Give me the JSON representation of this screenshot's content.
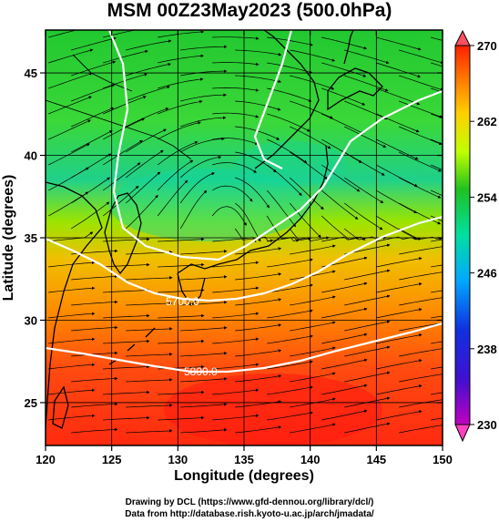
{
  "title": "MSM 00Z23May2023 (500.0hPa)",
  "xaxis": {
    "label": "Longitude (degrees)",
    "ticks": [
      "120",
      "125",
      "130",
      "135",
      "140",
      "145",
      "150"
    ],
    "range": [
      120,
      150
    ]
  },
  "yaxis": {
    "label": "Latitude  (degrees)",
    "ticks": [
      "25",
      "30",
      "35",
      "40",
      "45"
    ],
    "range": [
      22.4,
      47.6
    ]
  },
  "colorbar": {
    "ticks": [
      "230",
      "238",
      "246",
      "254",
      "262",
      "270"
    ],
    "range": [
      230,
      270
    ],
    "colors": [
      "#c000c0",
      "#2020d0",
      "#00b0ff",
      "#00e0a0",
      "#20c020",
      "#c0ff00",
      "#ffc000",
      "#ff2000"
    ]
  },
  "contours": [
    {
      "label": "5700.0"
    },
    {
      "label": "5800.0"
    }
  ],
  "footer": {
    "line1": "Drawing by DCL (https://www.gfd-dennou.org/library/dcl/)",
    "line2": "Data from http://database.rish.kyoto-u.ac.jp/arch/jmadata/"
  }
}
